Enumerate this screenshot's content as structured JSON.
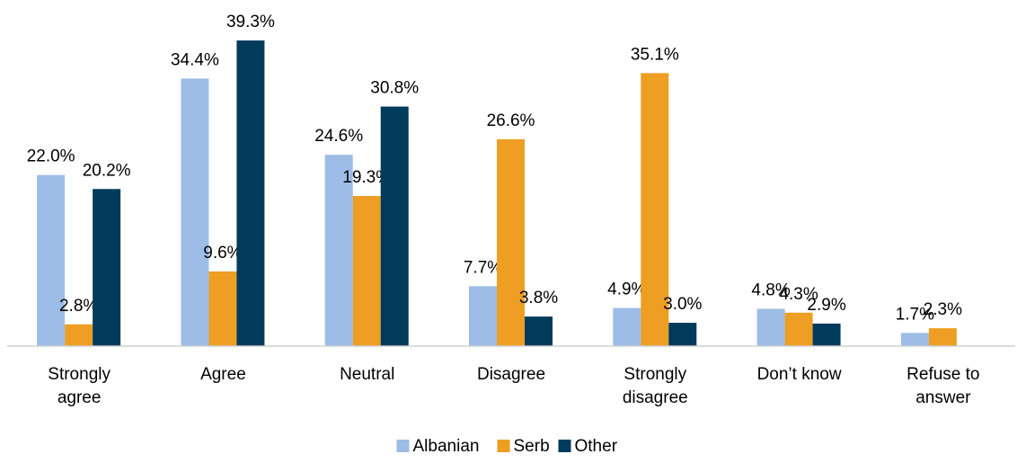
{
  "chart_data": {
    "type": "bar",
    "categories": [
      "Strongly agree",
      "Agree",
      "Neutral",
      "Disagree",
      "Strongly disagree",
      "Don’t know",
      "Refuse to answer"
    ],
    "series": [
      {
        "name": "Albanian",
        "color": "#9dbde6",
        "values": [
          22.0,
          34.4,
          24.6,
          7.7,
          4.9,
          4.8,
          1.7
        ],
        "value_labels": [
          "22.0%",
          "34.4%",
          "24.6%",
          "7.7%",
          "4.9%",
          "4.8%",
          "1.7%"
        ]
      },
      {
        "name": "Serb",
        "color": "#ee9e22",
        "values": [
          2.8,
          9.6,
          19.3,
          26.6,
          35.1,
          4.3,
          2.3
        ],
        "value_labels": [
          "2.8%",
          "9.6%",
          "19.3%",
          "26.6%",
          "35.1%",
          "4.3%",
          "2.3%"
        ]
      },
      {
        "name": "Other",
        "color": "#003b5c",
        "values": [
          20.2,
          39.3,
          30.8,
          3.8,
          3.0,
          2.9,
          null
        ],
        "value_labels": [
          "20.2%",
          "39.3%",
          "30.8%",
          "3.8%",
          "3.0%",
          "2.9%",
          null
        ]
      }
    ],
    "legend": "bottom"
  }
}
